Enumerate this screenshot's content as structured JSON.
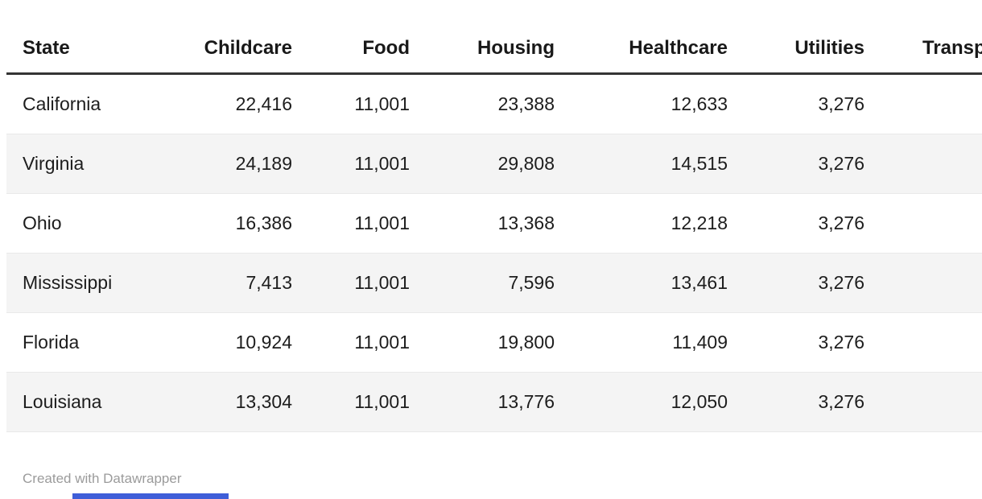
{
  "chart_data": {
    "type": "table",
    "columns": [
      "State",
      "Childcare",
      "Food",
      "Housing",
      "Healthcare",
      "Utilities",
      "Transportation"
    ],
    "rows": [
      [
        "California",
        22416,
        11001,
        23388,
        12633,
        3276
      ],
      [
        "Virginia",
        24189,
        11001,
        29808,
        14515,
        3276
      ],
      [
        "Ohio",
        16386,
        11001,
        13368,
        12218,
        3276
      ],
      [
        "Mississippi",
        7413,
        11001,
        7596,
        13461,
        3276
      ],
      [
        "Florida",
        10924,
        11001,
        19800,
        11409,
        3276
      ],
      [
        "Louisiana",
        13304,
        11001,
        13776,
        12050,
        3276
      ]
    ],
    "layout": {
      "striped_rows": true,
      "first_column_align": "left",
      "numeric_align": "right",
      "last_column_clipped_at_right_edge": true
    }
  },
  "table": {
    "headers": [
      "State",
      "Childcare",
      "Food",
      "Housing",
      "Healthcare",
      "Utilities",
      "Transportation"
    ],
    "rows": [
      {
        "cells": [
          "California",
          "22,416",
          "11,001",
          "23,388",
          "12,633",
          "3,276"
        ]
      },
      {
        "cells": [
          "Virginia",
          "24,189",
          "11,001",
          "29,808",
          "14,515",
          "3,276"
        ]
      },
      {
        "cells": [
          "Ohio",
          "16,386",
          "11,001",
          "13,368",
          "12,218",
          "3,276"
        ]
      },
      {
        "cells": [
          "Mississippi",
          "7,413",
          "11,001",
          "7,596",
          "13,461",
          "3,276"
        ]
      },
      {
        "cells": [
          "Florida",
          "10,924",
          "11,001",
          "19,800",
          "11,409",
          "3,276"
        ]
      },
      {
        "cells": [
          "Louisiana",
          "13,304",
          "11,001",
          "13,776",
          "12,050",
          "3,276"
        ]
      }
    ]
  },
  "footer": {
    "attribution": "Created with Datawrapper"
  },
  "colors": {
    "accent_bar": "#3f5ed8",
    "header_border": "#343434",
    "row_stripe": "#f4f4f4",
    "body_text": "#1d1d1d",
    "footer_text": "#9b9b9b"
  }
}
